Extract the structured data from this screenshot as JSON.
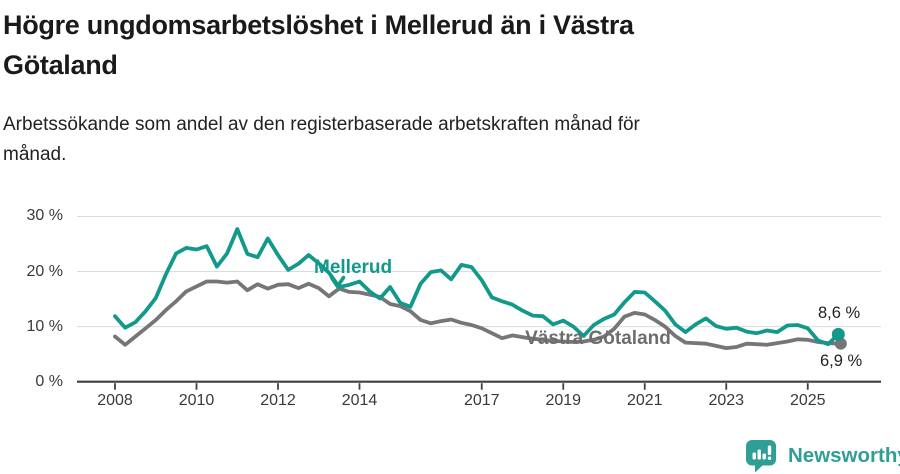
{
  "header": {
    "title": "Högre ungdomsarbetslöshet i Mellerud än i Västra Götaland",
    "title_lines": [
      "Högre ungdomsarbetslöshet i Mellerud än i Västra",
      "Götaland"
    ],
    "subtitle": "Arbetssökande som andel av den registerbaserade arbetskraften månad för månad.",
    "subtitle_lines": [
      "Arbetssökande som andel av den registerbaserade arbetskraften månad för",
      "månad."
    ]
  },
  "colors": {
    "teal": "#12998b",
    "gray_line": "#767676",
    "gray_label": "#6d6d6d",
    "grid": "#dcdcdc",
    "axis": "#3f3f3f",
    "tick_text": "#3a3a3a",
    "title_text": "#1a1a1a",
    "logo_teal": "#2f9e95"
  },
  "chart_data": {
    "type": "line",
    "title": "Högre ungdomsarbetslöshet i Mellerud än i Västra Götaland",
    "subtitle": "Arbetssökande som andel av den registerbaserade arbetskraften månad för månad.",
    "unit": "%",
    "xticks": [
      2008,
      2010,
      2012,
      2014,
      2017,
      2019,
      2021,
      2023,
      2025
    ],
    "yticks": [
      0,
      10,
      20,
      30
    ],
    "ylim": [
      0,
      32
    ],
    "xlim": [
      2008,
      2026.3
    ],
    "grid": "horizontal gridlines at 10/20/30 %, dark baseline at 0 %",
    "legend": "direct labels on lines with end-value dots",
    "series": [
      {
        "name": "Mellerud",
        "color": "#12998b",
        "x_start": 2008.0,
        "x_step": 0.25,
        "end_label": "8,6 %",
        "end_value": 8.6,
        "values": [
          11.9,
          9.8,
          10.8,
          12.8,
          15.2,
          19.5,
          23.3,
          24.3,
          24.0,
          24.6,
          20.9,
          23.3,
          27.7,
          23.2,
          22.6,
          26.0,
          23.0,
          20.3,
          21.4,
          23.0,
          21.5,
          19.8,
          17.2,
          17.6,
          18.2,
          16.4,
          15.1,
          17.2,
          14.3,
          13.6,
          17.8,
          19.9,
          20.2,
          18.6,
          21.2,
          20.8,
          18.4,
          15.3,
          14.6,
          14.0,
          12.9,
          12.0,
          11.9,
          10.4,
          11.1,
          10.0,
          8.3,
          10.3,
          11.4,
          12.2,
          14.4,
          16.3,
          16.2,
          14.6,
          12.9,
          10.4,
          9.0,
          10.4,
          11.5,
          10.1,
          9.6,
          9.8,
          9.1,
          8.8,
          9.3,
          9.0,
          10.2,
          10.3,
          9.7,
          7.5,
          6.8,
          8.6
        ]
      },
      {
        "name": "Västra Götaland",
        "color": "#767676",
        "x_start": 2008.0,
        "x_step": 0.25,
        "end_label": "6,9 %",
        "end_value": 6.9,
        "values": [
          8.2,
          6.7,
          8.2,
          9.7,
          11.2,
          13.0,
          14.6,
          16.4,
          17.3,
          18.2,
          18.2,
          18.0,
          18.2,
          16.6,
          17.7,
          16.9,
          17.6,
          17.7,
          17.0,
          17.8,
          17.0,
          15.5,
          16.9,
          16.3,
          16.2,
          15.8,
          15.4,
          14.1,
          13.7,
          12.8,
          11.2,
          10.6,
          11.0,
          11.3,
          10.7,
          10.3,
          9.7,
          8.8,
          7.9,
          8.4,
          8.1,
          7.8,
          7.6,
          7.4,
          7.3,
          7.2,
          7.3,
          7.6,
          8.2,
          9.6,
          11.8,
          12.5,
          12.2,
          11.2,
          10.0,
          8.3,
          7.1,
          7.0,
          6.9,
          6.5,
          6.1,
          6.3,
          6.9,
          6.8,
          6.7,
          7.0,
          7.3,
          7.7,
          7.6,
          7.2,
          7.0,
          6.9
        ]
      }
    ]
  },
  "footer": {
    "brand": "Newsworthy"
  }
}
